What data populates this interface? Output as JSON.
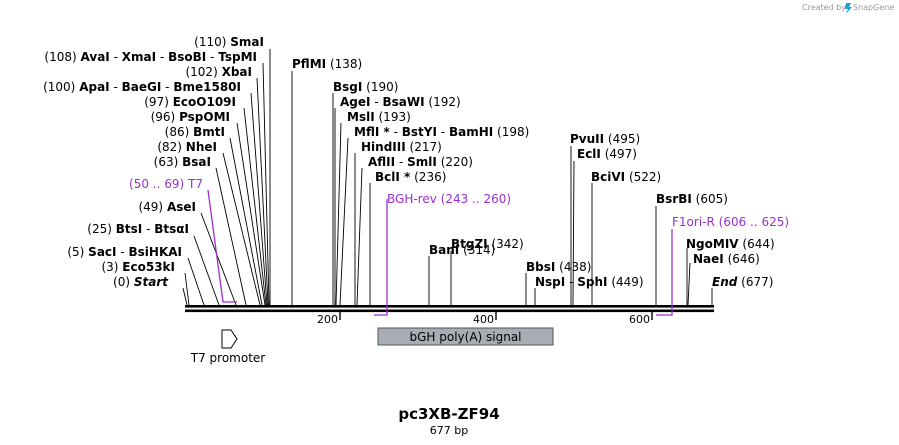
{
  "credit": {
    "created_by": "Created by",
    "brand": "SnapGene"
  },
  "plasmid": {
    "name": "pc3XB-ZF94",
    "length_label": "677 bp",
    "length": 677
  },
  "ruler": {
    "ticks": [
      "200",
      "400",
      "600"
    ]
  },
  "features": {
    "t7_promoter": {
      "label": "T7 promoter"
    },
    "bgh": {
      "label": "bGH poly(A) signal"
    }
  },
  "sites": {
    "smai": {
      "pos": "(110)",
      "name": "SmaI"
    },
    "avai": {
      "pos": "(108)",
      "name1": "AvaI",
      "name2": "XmaI",
      "name3": "BsoBI",
      "name4": "TspMI",
      "sep": "-"
    },
    "xbai": {
      "pos": "(102)",
      "name": "XbaI"
    },
    "apai": {
      "pos": "(100)",
      "name1": "ApaI",
      "name2": "BaeGI",
      "name3": "Bme1580I",
      "sep": "-"
    },
    "ecoo": {
      "pos": "(97)",
      "name": "EcoO109I"
    },
    "psp": {
      "pos": "(96)",
      "name": "PspOMI"
    },
    "bmti": {
      "pos": "(86)",
      "name": "BmtI"
    },
    "nhei": {
      "pos": "(82)",
      "name": "NheI"
    },
    "bsai": {
      "pos": "(63)",
      "name": "BsaI"
    },
    "asei": {
      "pos": "(49)",
      "name": "AseI"
    },
    "btsi": {
      "pos": "(25)",
      "name1": "BtsI",
      "name2": "BtsαI",
      "sep": "-"
    },
    "saci": {
      "pos": "(5)",
      "name1": "SacI",
      "name2": "BsiHKAI",
      "sep": "-"
    },
    "eco53": {
      "pos": "(3)",
      "name": "Eco53kI"
    },
    "start": {
      "pos": "(0)",
      "name": "Start"
    },
    "pflmi": {
      "pos": "(138)",
      "name": "PflMI"
    },
    "bsgi": {
      "pos": "(190)",
      "name": "BsgI"
    },
    "agei": {
      "pos": "(192)",
      "name1": "AgeI",
      "name2": "BsaWI",
      "sep": "-"
    },
    "msli": {
      "pos": "(193)",
      "name": "MslI"
    },
    "mfli": {
      "pos": "(198)",
      "name1": "MflI *",
      "name2": "BstYI",
      "name3": "BamHI",
      "sep": "-"
    },
    "hind": {
      "pos": "(217)",
      "name": "HindIII"
    },
    "aflii": {
      "pos": "(220)",
      "name1": "AflII",
      "name2": "SmlI",
      "sep": "-"
    },
    "bcli": {
      "pos": "(236)",
      "name": "BclI *"
    },
    "bani": {
      "pos": "(314)",
      "name": "BanI"
    },
    "btgzi": {
      "pos": "(342)",
      "name": "BtgZI"
    },
    "bbsi": {
      "pos": "(438)",
      "name": "BbsI"
    },
    "nspi": {
      "pos": "(449)",
      "name1": "NspI",
      "name2": "SphI",
      "sep": "-"
    },
    "pvuii": {
      "pos": "(495)",
      "name": "PvuII"
    },
    "ecli": {
      "pos": "(497)",
      "name": "EclI"
    },
    "bcivi": {
      "pos": "(522)",
      "name": "BciVI"
    },
    "bsrbi": {
      "pos": "(605)",
      "name": "BsrBI"
    },
    "ngomiv": {
      "pos": "(644)",
      "name": "NgoMIV"
    },
    "naei": {
      "pos": "(646)",
      "name": "NaeI"
    },
    "end": {
      "pos": "(677)",
      "name": "End"
    }
  },
  "primers": {
    "t7": {
      "range": "(50 .. 69)",
      "name": "T7"
    },
    "bgh_rev": {
      "name": "BGH-rev",
      "range": "(243 .. 260)"
    },
    "f1ori": {
      "name": "F1ori-R",
      "range": "(606 .. 625)"
    }
  }
}
